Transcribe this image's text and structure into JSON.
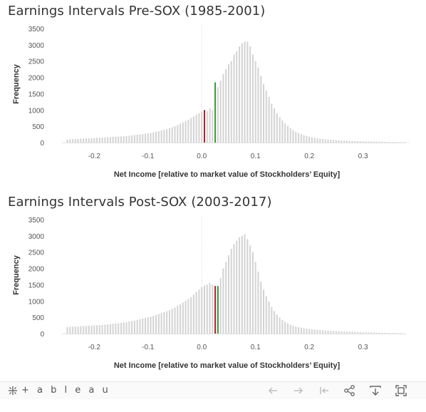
{
  "chart_data": [
    {
      "type": "bar",
      "title": "Earnings Intervals Pre-SOX (1985-2001)",
      "xlabel": "Net Income [relative to market value of Stockholders’ Equity]",
      "ylabel": "Frequency",
      "xlim": [
        -0.26,
        0.38
      ],
      "ylim": [
        0,
        3500
      ],
      "x_ticks": [
        "-0.2",
        "-0.1",
        "0.0",
        "0.1",
        "0.2",
        "0.3"
      ],
      "y_ticks": [
        "3500",
        "3000",
        "2500",
        "2000",
        "1500",
        "1000",
        "500",
        "0"
      ],
      "bin_width": 0.005,
      "x_start": -0.25,
      "highlight": {
        "negative_color": "#b22234",
        "positive_color": "#3d9a3a",
        "bar_color": "#d4d4d4"
      },
      "values": [
        95,
        100,
        105,
        110,
        115,
        120,
        125,
        130,
        130,
        135,
        140,
        145,
        150,
        155,
        160,
        165,
        170,
        175,
        180,
        185,
        190,
        195,
        200,
        210,
        220,
        230,
        240,
        250,
        260,
        270,
        280,
        295,
        310,
        330,
        350,
        370,
        390,
        410,
        440,
        470,
        500,
        540,
        580,
        620,
        660,
        700,
        750,
        800,
        850,
        900,
        950,
        1000,
        960,
        1050,
        1000,
        1850,
        1700,
        1900,
        2100,
        2250,
        2400,
        2500,
        2700,
        2800,
        2950,
        3050,
        3100,
        3100,
        2950,
        2700,
        2500,
        2300,
        2050,
        1800,
        1600,
        1400,
        1200,
        1050,
        900,
        780,
        680,
        590,
        510,
        440,
        380,
        330,
        290,
        255,
        225,
        200,
        180,
        160,
        145,
        130,
        120,
        110,
        100,
        92,
        85,
        80,
        75,
        70,
        65,
        60,
        56,
        52,
        48,
        45,
        42,
        40,
        38,
        36,
        34,
        32,
        30,
        28,
        26,
        24,
        22,
        20,
        18,
        16,
        15,
        14,
        13,
        12,
        11,
        10
      ],
      "highlight_indices": {
        "negative": 51,
        "positive": 55
      }
    },
    {
      "type": "bar",
      "title": "Earnings Intervals Post-SOX (2003-2017)",
      "xlabel": "Net Income [relative to market value of Stockholders’ Equity]",
      "ylabel": "Frequency",
      "xlim": [
        -0.26,
        0.38
      ],
      "ylim": [
        0,
        3500
      ],
      "x_ticks": [
        "-0.2",
        "-0.1",
        "0.0",
        "0.1",
        "0.2",
        "0.3"
      ],
      "y_ticks": [
        "3500",
        "3000",
        "2500",
        "2000",
        "1500",
        "1000",
        "500",
        "0"
      ],
      "bin_width": 0.005,
      "x_start": -0.25,
      "highlight": {
        "negative_color": "#b22234",
        "positive_color": "#3d9a3a",
        "bar_color": "#d4d4d4"
      },
      "values": [
        200,
        205,
        210,
        215,
        220,
        225,
        230,
        235,
        240,
        245,
        250,
        255,
        260,
        265,
        270,
        280,
        290,
        300,
        310,
        320,
        330,
        340,
        355,
        370,
        385,
        400,
        420,
        440,
        460,
        480,
        500,
        520,
        545,
        570,
        600,
        630,
        660,
        690,
        720,
        760,
        800,
        850,
        900,
        950,
        1000,
        1060,
        1120,
        1200,
        1280,
        1350,
        1420,
        1480,
        1500,
        1550,
        1500,
        1460,
        1460,
        1700,
        2000,
        2200,
        2400,
        2600,
        2750,
        2850,
        2950,
        3000,
        3050,
        2900,
        2700,
        2500,
        2200,
        1900,
        1600,
        1350,
        1150,
        980,
        820,
        690,
        580,
        490,
        420,
        360,
        310,
        270,
        240,
        215,
        195,
        180,
        165,
        150,
        140,
        130,
        122,
        115,
        108,
        102,
        96,
        90,
        85,
        80,
        76,
        72,
        68,
        64,
        60,
        56,
        52,
        48,
        45,
        42,
        40,
        38,
        36,
        34,
        32,
        30,
        28,
        26,
        24,
        22,
        20,
        18,
        16,
        15,
        14
      ],
      "highlight_indices": {
        "negative": 55,
        "positive": 56
      }
    }
  ],
  "toolbar": {
    "logo_text": "+ a b l e a u",
    "icons": [
      "undo-icon",
      "redo-icon",
      "revert-icon",
      "share-icon",
      "download-icon",
      "fullscreen-icon"
    ]
  }
}
